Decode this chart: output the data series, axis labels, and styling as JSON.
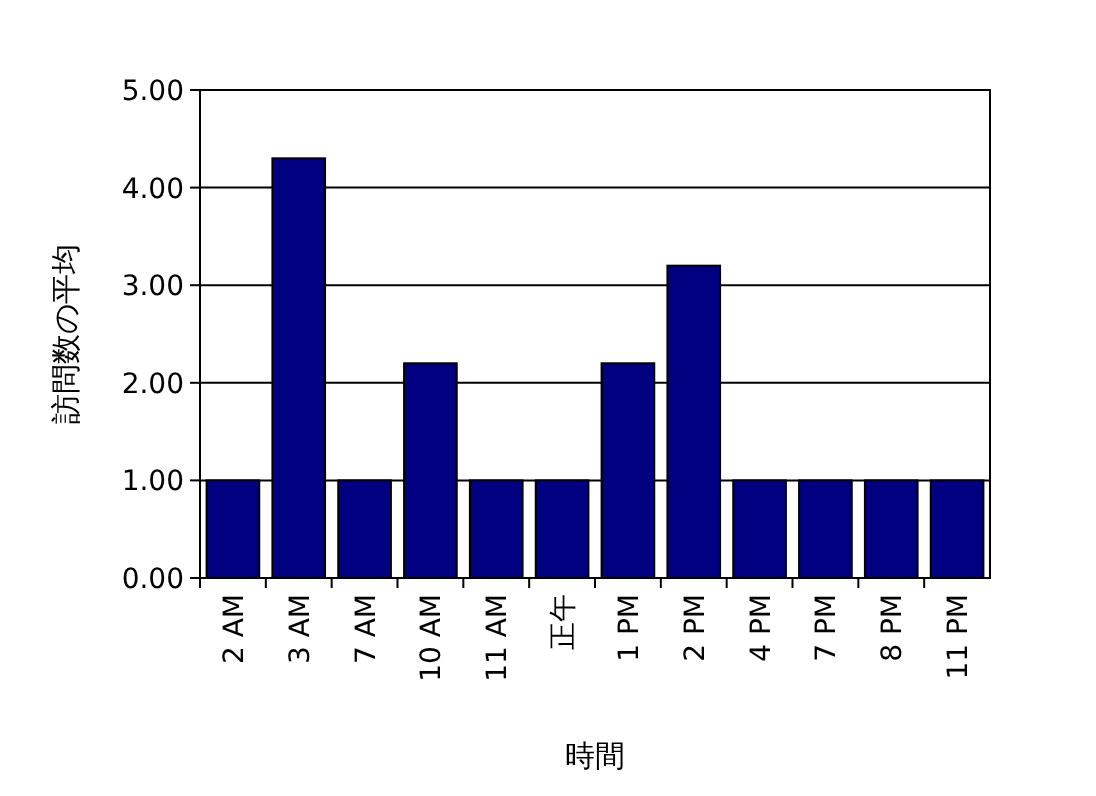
{
  "chart_data": {
    "type": "bar",
    "xlabel": "時間",
    "ylabel": "訪問数の平均",
    "categories": [
      "2 AM",
      "3 AM",
      "7 AM",
      "10 AM",
      "11 AM",
      "正午",
      "1 PM",
      "2 PM",
      "4 PM",
      "7 PM",
      "8 PM",
      "11 PM"
    ],
    "values": [
      1,
      4.3,
      1,
      2.2,
      1,
      1,
      2.2,
      3.2,
      1,
      1,
      1,
      1
    ],
    "color": "#000080",
    "ylim": [
      0,
      5
    ],
    "yticks": [
      {
        "value": 0,
        "label": "0.00"
      },
      {
        "value": 1,
        "label": "1.00"
      },
      {
        "value": 2,
        "label": "2.00"
      },
      {
        "value": 3,
        "label": "3.00"
      },
      {
        "value": 4,
        "label": "4.00"
      },
      {
        "value": 5,
        "label": "5.00"
      }
    ],
    "grid": "y"
  }
}
